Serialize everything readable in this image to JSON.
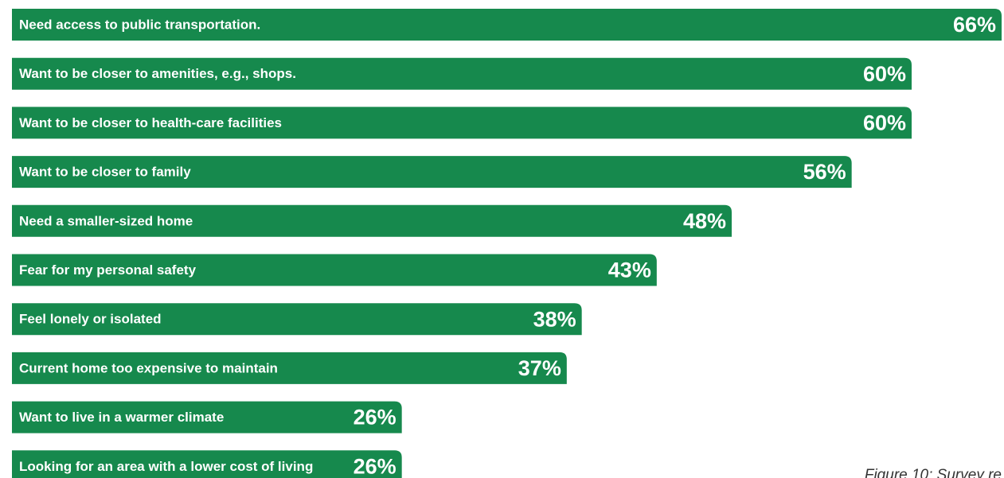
{
  "chart_data": {
    "type": "bar",
    "orientation": "horizontal",
    "categories": [
      "Need access to public transportation.",
      "Want to be closer to amenities, e.g., shops.",
      "Want to be closer to health-care facilities",
      "Want to be closer to family",
      "Need a smaller-sized home",
      "Fear for my personal safety",
      "Feel lonely or isolated",
      "Current home too expensive to maintain",
      "Want to live in a warmer climate",
      "Looking for an area with a lower cost of living"
    ],
    "values": [
      66,
      60,
      60,
      56,
      48,
      43,
      38,
      37,
      26,
      26
    ],
    "value_labels": [
      "66%",
      "60%",
      "60%",
      "56%",
      "48%",
      "43%",
      "38%",
      "37%",
      "26%",
      "26%"
    ],
    "color": "#16894d",
    "annotation": "Figure 10: Survey re"
  }
}
